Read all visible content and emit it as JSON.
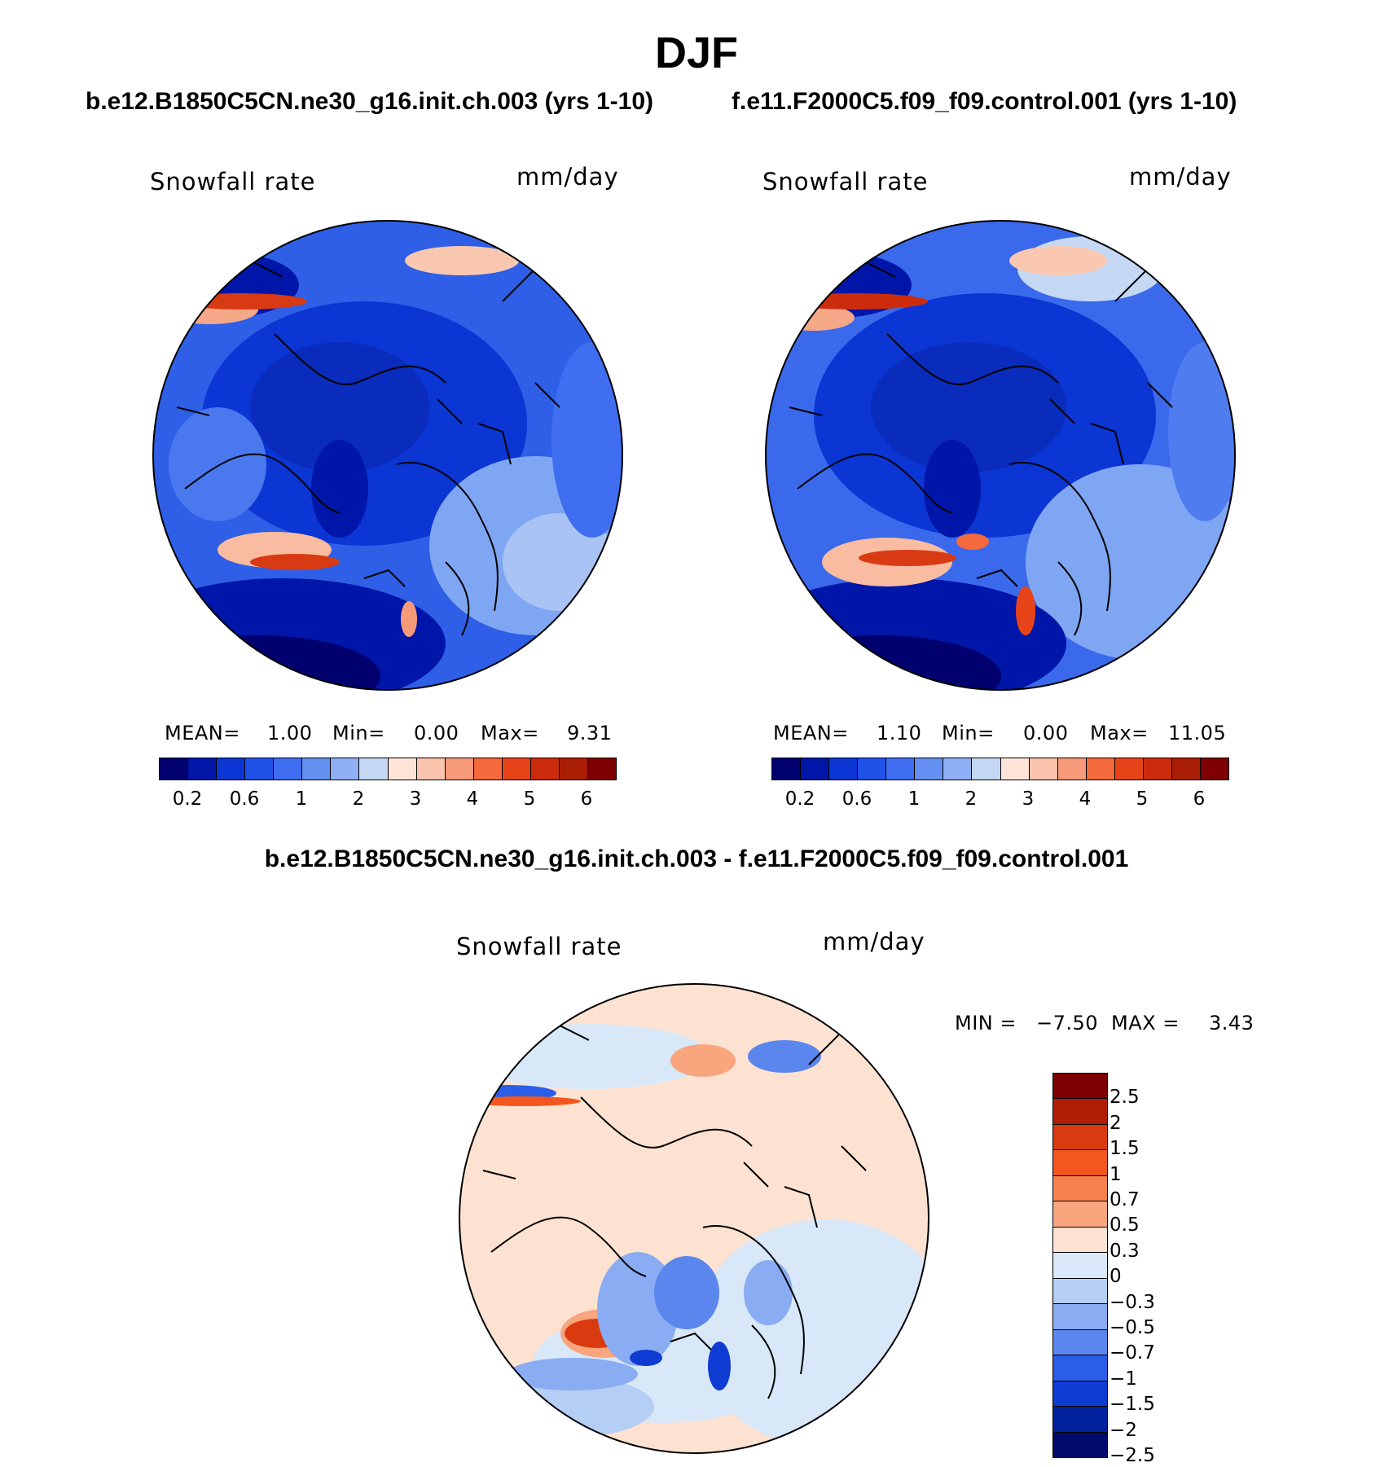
{
  "main_title": "DJF",
  "panels": {
    "left": {
      "case": "b.e12.B1850C5CN.ne30_g16.init.ch.003 (yrs 1-10)",
      "variable": "Snowfall rate",
      "units": "mm/day",
      "mean_label": "MEAN=",
      "mean": "1.00",
      "min_label": "Min=",
      "min": "0.00",
      "max_label": "Max=",
      "max": "9.31"
    },
    "right": {
      "case": "f.e11.F2000C5.f09_f09.control.001 (yrs 1-10)",
      "variable": "Snowfall rate",
      "units": "mm/day",
      "mean_label": "MEAN=",
      "mean": "1.10",
      "min_label": "Min=",
      "min": "0.00",
      "max_label": "Max=",
      "max": "11.05"
    },
    "diff": {
      "title": "b.e12.B1850C5CN.ne30_g16.init.ch.003 - f.e11.F2000C5.f09_f09.control.001",
      "variable": "Snowfall rate",
      "units": "mm/day",
      "min_label": "MIN =",
      "min": "−7.50",
      "max_label": "MAX =",
      "max": "3.43"
    }
  },
  "colorbar_main": {
    "colors": [
      "#00006e",
      "#0016a8",
      "#0b36d4",
      "#2152e8",
      "#3f6ef0",
      "#6490f2",
      "#8fb0f4",
      "#c4d8f4",
      "#fde4d6",
      "#fac4ac",
      "#f79a7a",
      "#f46a3c",
      "#e8441a",
      "#cc2c0c",
      "#aa1e06",
      "#7e0000"
    ],
    "tick_labels": [
      "0.2",
      "0.6",
      "1",
      "2",
      "3",
      "4",
      "5",
      "6"
    ]
  },
  "colorbar_diff": {
    "colors": [
      "#7e0000",
      "#b01c04",
      "#da3a10",
      "#f45620",
      "#f7814e",
      "#f9a57e",
      "#fde2d2",
      "#d8e8f8",
      "#b4cef4",
      "#8aacf2",
      "#5a86ee",
      "#2a5ee8",
      "#0e3cd2",
      "#00229e",
      "#000a6a"
    ],
    "tick_labels": [
      "2.5",
      "2",
      "1.5",
      "1",
      "0.7",
      "0.5",
      "0.3",
      "0",
      "−0.3",
      "−0.5",
      "−0.7",
      "−1",
      "−1.5",
      "−2",
      "−2.5"
    ]
  }
}
